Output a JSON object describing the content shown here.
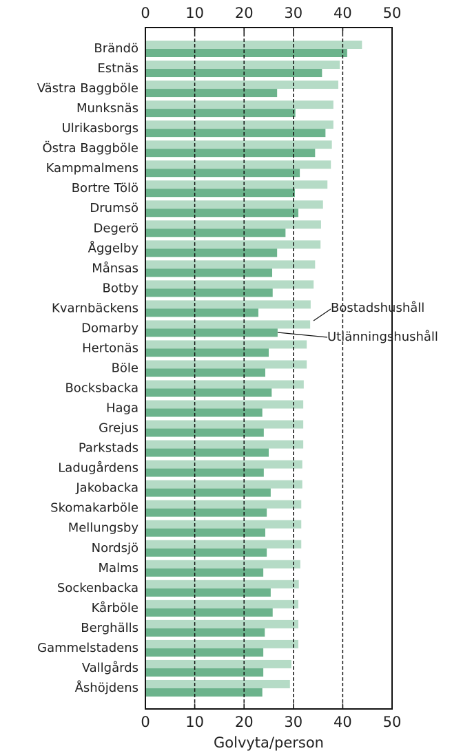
{
  "chart_data": {
    "type": "barh",
    "xlabel": "Golvyta/person",
    "categories": [
      "Brändö",
      "Estnäs",
      "Västra Baggböle",
      "Munksnäs",
      "Ulrikasborgs",
      "Östra Baggböle",
      "Kampmalmens",
      "Bortre Tölö",
      "Drumsö",
      "Degerö",
      "Åggelby",
      "Månsas",
      "Botby",
      "Kvarnbäckens",
      "Domarby",
      "Hertonäs",
      "Böle",
      "Bocksbacka",
      "Haga",
      "Grejus",
      "Parkstads",
      "Ladugårdens",
      "Jakobacka",
      "Skomakarböle",
      "Mellungsby",
      "Nordsjö",
      "Malms",
      "Sockenbacka",
      "Kårböle",
      "Berghälls",
      "Gammelstadens",
      "Vallgårds",
      "Åshöjdens"
    ],
    "series": [
      {
        "name": "Bostadshushåll",
        "color": "#b5dbc6",
        "values": [
          43.9,
          39.4,
          39.1,
          38.1,
          38.1,
          37.8,
          37.6,
          36.9,
          36.0,
          35.6,
          35.5,
          34.4,
          34.1,
          33.5,
          33.4,
          32.7,
          32.7,
          32.1,
          32.0,
          32.0,
          32.0,
          31.8,
          31.8,
          31.6,
          31.6,
          31.6,
          31.4,
          31.1,
          31.0,
          31.0,
          31.0,
          29.6,
          29.3
        ]
      },
      {
        "name": "Utlänningshushåll",
        "color": "#6cb38c",
        "values": [
          40.9,
          35.8,
          26.7,
          30.4,
          36.5,
          34.4,
          31.3,
          30.3,
          31.0,
          28.4,
          26.7,
          25.7,
          25.8,
          22.9,
          26.8,
          25.0,
          24.3,
          25.6,
          23.7,
          24.0,
          25.0,
          24.0,
          25.4,
          24.6,
          24.3,
          24.6,
          23.9,
          25.4,
          25.8,
          24.2,
          23.9,
          23.9,
          23.7
        ]
      }
    ],
    "xlim": [
      0,
      50
    ],
    "xticks": [
      0,
      10,
      20,
      30,
      40,
      50
    ],
    "grid": true
  }
}
